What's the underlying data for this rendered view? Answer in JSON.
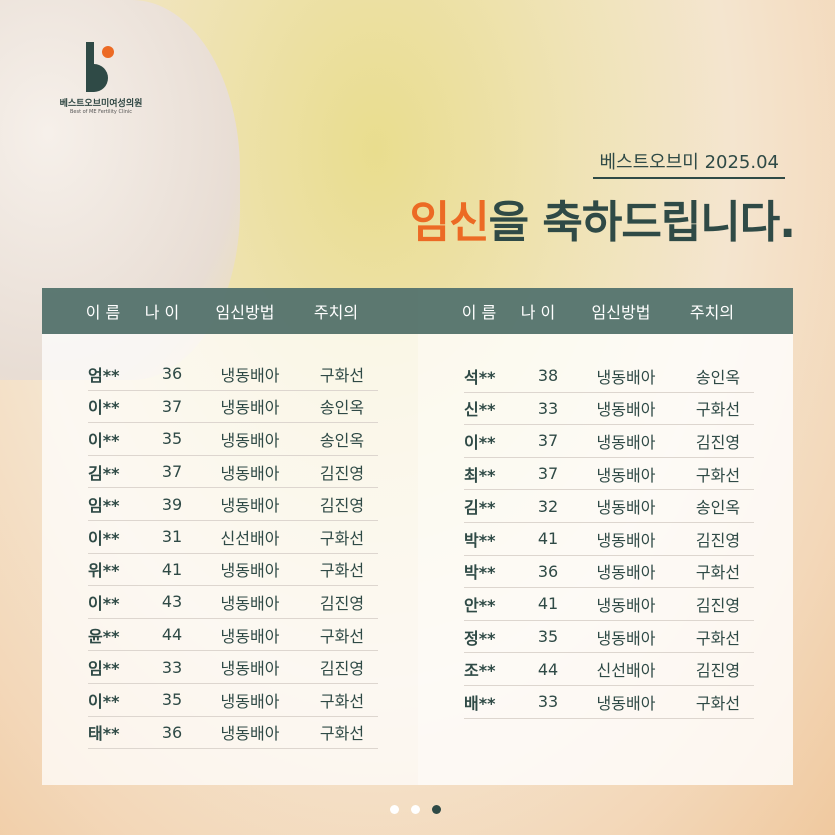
{
  "logo": {
    "kr": "베스트오브미여성의원",
    "en": "Best of ME Fertility Clinic"
  },
  "subtitle": "베스트오브미 2025.04",
  "title": {
    "highlight": "임신",
    "rest": "을 축하드립니다."
  },
  "headers": [
    "이 름",
    "나 이",
    "임신방법",
    "주치의"
  ],
  "left_rows": [
    [
      "엄**",
      "36",
      "냉동배아",
      "구화선"
    ],
    [
      "이**",
      "37",
      "냉동배아",
      "송인옥"
    ],
    [
      "이**",
      "35",
      "냉동배아",
      "송인옥"
    ],
    [
      "김**",
      "37",
      "냉동배아",
      "김진영"
    ],
    [
      "임**",
      "39",
      "냉동배아",
      "김진영"
    ],
    [
      "이**",
      "31",
      "신선배아",
      "구화선"
    ],
    [
      "위**",
      "41",
      "냉동배아",
      "구화선"
    ],
    [
      "이**",
      "43",
      "냉동배아",
      "김진영"
    ],
    [
      "윤**",
      "44",
      "냉동배아",
      "구화선"
    ],
    [
      "임**",
      "33",
      "냉동배아",
      "김진영"
    ],
    [
      "이**",
      "35",
      "냉동배아",
      "구화선"
    ],
    [
      "태**",
      "36",
      "냉동배아",
      "구화선"
    ]
  ],
  "right_rows": [
    [
      "석**",
      "38",
      "냉동배아",
      "송인옥"
    ],
    [
      "신**",
      "33",
      "냉동배아",
      "구화선"
    ],
    [
      "이**",
      "37",
      "냉동배아",
      "김진영"
    ],
    [
      "최**",
      "37",
      "냉동배아",
      "구화선"
    ],
    [
      "김**",
      "32",
      "냉동배아",
      "송인옥"
    ],
    [
      "박**",
      "41",
      "냉동배아",
      "김진영"
    ],
    [
      "박**",
      "36",
      "냉동배아",
      "구화선"
    ],
    [
      "안**",
      "41",
      "냉동배아",
      "김진영"
    ],
    [
      "정**",
      "35",
      "냉동배아",
      "구화선"
    ],
    [
      "조**",
      "44",
      "신선배아",
      "김진영"
    ],
    [
      "배**",
      "33",
      "냉동배아",
      "구화선"
    ]
  ],
  "pagination": {
    "count": 3,
    "active": 3
  },
  "colors": {
    "accent": "#ec6a24",
    "primary": "#2f4a46",
    "header": "#466660"
  }
}
